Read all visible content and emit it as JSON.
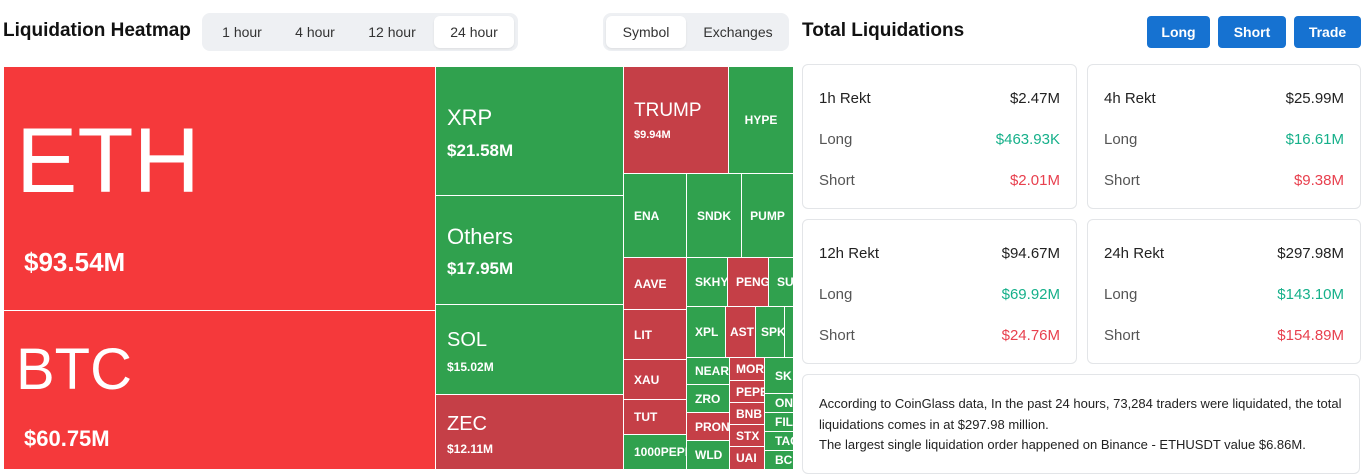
{
  "heatmap": {
    "title": "Liquidation Heatmap",
    "time_tabs": [
      "1 hour",
      "4 hour",
      "12 hour",
      "24 hour"
    ],
    "time_active": "24 hour",
    "view_tabs": [
      "Symbol",
      "Exchanges"
    ],
    "view_active": "Symbol",
    "colors": {
      "long_dominant": "#f5393b",
      "long_dominant_dark": "#c53f47",
      "short_dominant": "#30a14e"
    },
    "tiles": {
      "eth": {
        "symbol": "ETH",
        "value": "$93.54M"
      },
      "btc": {
        "symbol": "BTC",
        "value": "$60.75M"
      },
      "xrp": {
        "symbol": "XRP",
        "value": "$21.58M"
      },
      "others": {
        "symbol": "Others",
        "value": "$17.95M"
      },
      "sol": {
        "symbol": "SOL",
        "value": "$15.02M"
      },
      "zec": {
        "symbol": "ZEC",
        "value": "$12.11M"
      },
      "trump": {
        "symbol": "TRUMP",
        "value": "$9.94M"
      },
      "hype": "HYPE",
      "ena": "ENA",
      "sndk": "SNDK",
      "pump": "PUMP",
      "aave": "AAVE",
      "skhy": "SKHY",
      "peng": "PENG",
      "su": "SU",
      "lit": "LIT",
      "xpl": "XPL",
      "ast": "AST",
      "spk": "SPK",
      "xau": "XAU",
      "near": "NEAR",
      "morf": "MORF",
      "sk": "SK",
      "zro": "ZRO",
      "pepe": "PEPE",
      "on": "ON",
      "tut": "TUT",
      "pron": "PRON",
      "bnb": "BNB",
      "fil": "FIL",
      "stx": "STX",
      "tag": "TAG",
      "pepe1000": "1000PEPE",
      "wld": "WLD",
      "uai": "UAI",
      "bc": "BC"
    }
  },
  "total": {
    "title": "Total Liquidations",
    "buttons": {
      "long": "Long",
      "short": "Short",
      "trade": "Trade"
    },
    "long_label": "Long",
    "short_label": "Short",
    "cards": {
      "h1": {
        "label": "1h Rekt",
        "total": "$2.47M",
        "long": "$463.93K",
        "short": "$2.01M"
      },
      "h4": {
        "label": "4h Rekt",
        "total": "$25.99M",
        "long": "$16.61M",
        "short": "$9.38M"
      },
      "h12": {
        "label": "12h Rekt",
        "total": "$94.67M",
        "long": "$69.92M",
        "short": "$24.76M"
      },
      "h24": {
        "label": "24h Rekt",
        "total": "$297.98M",
        "long": "$143.10M",
        "short": "$154.89M"
      }
    },
    "summary_line1": "According to CoinGlass data, In the past 24 hours, 73,284 traders were liquidated, the total liquidations comes in at $297.98 million.",
    "summary_line2": "The largest single liquidation order happened on Binance - ETHUSDT value $6.86M."
  }
}
